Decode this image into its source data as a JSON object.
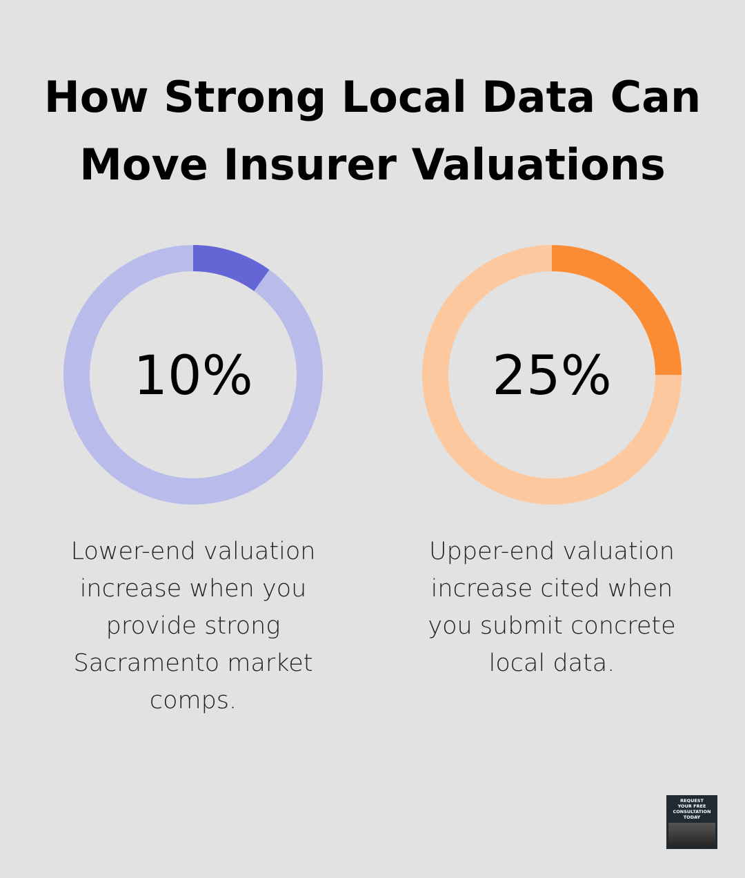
{
  "title": "How Strong Local Data Can Move Insurer Valuations",
  "chart_data": [
    {
      "type": "donut",
      "values": [
        10
      ],
      "value_labels": [
        "10%"
      ],
      "color": "#6366d4",
      "track_color": "#b9bceb",
      "caption": "Lower-end valuation increase when you provide strong Sacramento market comps."
    },
    {
      "type": "donut",
      "values": [
        25
      ],
      "value_labels": [
        "25%"
      ],
      "color": "#fb8c34",
      "track_color": "#fdc89d",
      "caption": "Upper-end valuation increase cited when you submit concrete local data."
    }
  ],
  "badge": {
    "lines": [
      "REQUEST",
      "YOUR FREE",
      "CONSULTATION",
      "TODAY"
    ]
  }
}
